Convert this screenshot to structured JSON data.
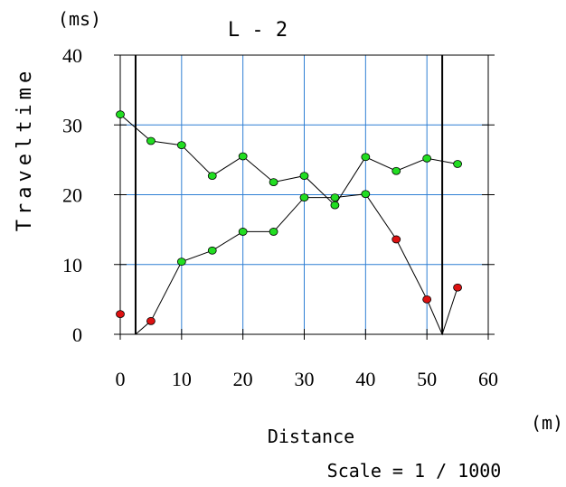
{
  "chart_data": {
    "type": "line",
    "title": "L - 2",
    "xlabel": "Distance",
    "ylabel": "Traveltime",
    "x_unit": "(m)",
    "y_unit": "(ms)",
    "scale_note": "Scale = 1 / 1000",
    "xlim": [
      0,
      60
    ],
    "ylim": [
      0,
      40
    ],
    "x_ticks": [
      0,
      10,
      20,
      30,
      40,
      50,
      60
    ],
    "y_ticks": [
      0,
      10,
      20,
      30,
      40
    ],
    "grid": true,
    "source_positions": [
      2.5,
      52.5
    ],
    "series": [
      {
        "points": [
          [
            0,
            31.5
          ],
          [
            5,
            27.7
          ],
          [
            10,
            27.1
          ],
          [
            15,
            22.7
          ],
          [
            20,
            25.5
          ],
          [
            25,
            21.8
          ],
          [
            30,
            22.7
          ],
          [
            35,
            18.5
          ],
          [
            40,
            25.4
          ],
          [
            45,
            23.4
          ],
          [
            50,
            25.2
          ],
          [
            55,
            24.4
          ]
        ]
      },
      {
        "points": [
          [
            2.5,
            0
          ],
          [
            5,
            1.9
          ],
          [
            10,
            10.4
          ],
          [
            15,
            12.0
          ],
          [
            20,
            14.7
          ],
          [
            25,
            14.7
          ],
          [
            30,
            19.6
          ],
          [
            35,
            19.6
          ],
          [
            40,
            20.1
          ],
          [
            45,
            13.6
          ],
          [
            50,
            5.0
          ],
          [
            52.5,
            0
          ],
          [
            55,
            6.7
          ]
        ]
      }
    ],
    "markers": {
      "green": [
        [
          0,
          31.5
        ],
        [
          5,
          27.7
        ],
        [
          10,
          27.1
        ],
        [
          15,
          22.7
        ],
        [
          20,
          25.5
        ],
        [
          25,
          21.8
        ],
        [
          30,
          22.7
        ],
        [
          35,
          18.5
        ],
        [
          40,
          25.4
        ],
        [
          45,
          23.4
        ],
        [
          50,
          25.2
        ],
        [
          55,
          24.4
        ],
        [
          10,
          10.4
        ],
        [
          15,
          12.0
        ],
        [
          20,
          14.7
        ],
        [
          25,
          14.7
        ],
        [
          30,
          19.6
        ],
        [
          35,
          19.6
        ],
        [
          40,
          20.1
        ]
      ],
      "red": [
        [
          0,
          2.9
        ],
        [
          5,
          1.9
        ],
        [
          45,
          13.6
        ],
        [
          50,
          5.0
        ],
        [
          55,
          6.7
        ]
      ]
    },
    "colors": {
      "grid": "#2f7fd4",
      "axes": "#000000",
      "line": "#000000",
      "green": "#22dd22",
      "red": "#dd1111"
    }
  }
}
